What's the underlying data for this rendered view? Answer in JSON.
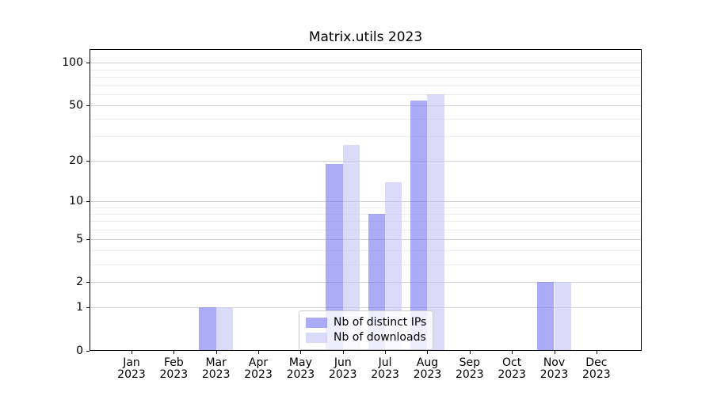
{
  "chart_data": {
    "type": "bar",
    "title": "Matrix.utils 2023",
    "categories": [
      "Jan 2023",
      "Feb 2023",
      "Mar 2023",
      "Apr 2023",
      "May 2023",
      "Jun 2023",
      "Jul 2023",
      "Aug 2023",
      "Sep 2023",
      "Oct 2023",
      "Nov 2023",
      "Dec 2023"
    ],
    "series": [
      {
        "name": "Nb of distinct IPs",
        "color": "#7373f3",
        "fill": "rgba(115,115,243,0.6)",
        "values": [
          0,
          0,
          1,
          0,
          0,
          19,
          8,
          54,
          0,
          0,
          2,
          0
        ]
      },
      {
        "name": "Nb of downloads",
        "color": "#c3c3f5",
        "fill": "rgba(195,195,245,0.6)",
        "values": [
          0,
          0,
          1,
          0,
          0,
          26,
          14,
          60,
          0,
          0,
          2,
          0
        ]
      }
    ],
    "xlabel": "",
    "ylabel": "",
    "yscale": "log1p",
    "ylim": [
      0,
      125
    ],
    "y_major_ticks": [
      0,
      1,
      2,
      5,
      10,
      20,
      50,
      100
    ],
    "y_minor_ticks": [
      3,
      4,
      6,
      7,
      8,
      9,
      30,
      40,
      60,
      70,
      80,
      90
    ],
    "grid": true,
    "legend_position": "lower center",
    "colors": {
      "major_grid": "#d3d3d3",
      "minor_grid": "#ededed",
      "spine": "#000000",
      "text": "#000000",
      "background": "#ffffff"
    }
  }
}
